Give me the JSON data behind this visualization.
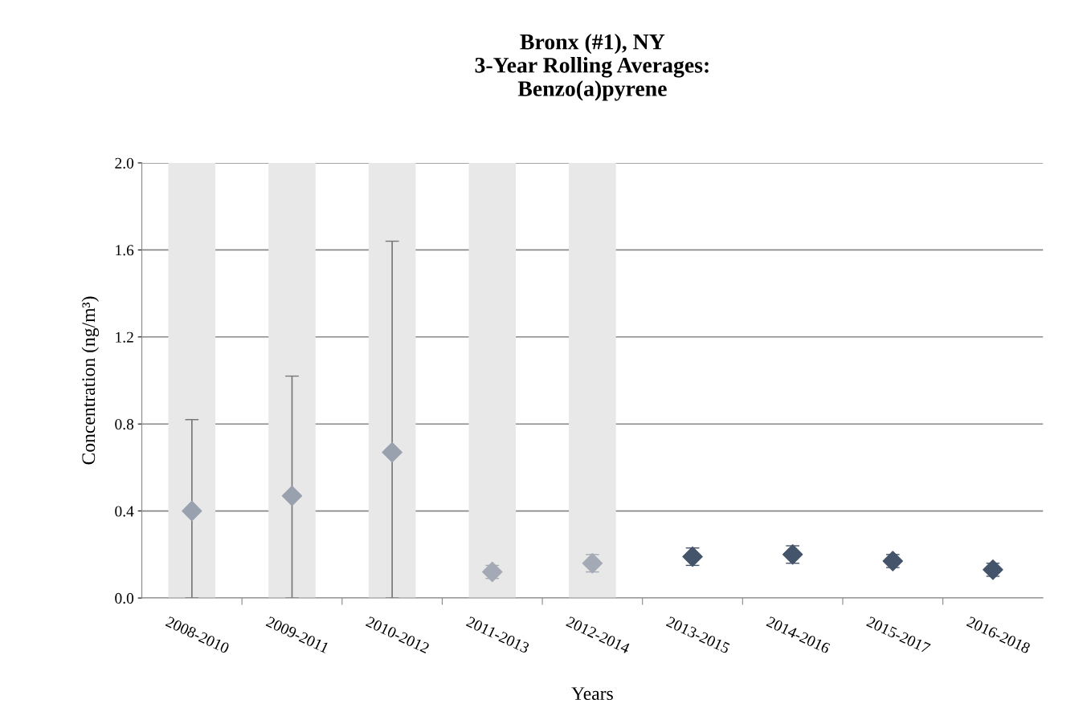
{
  "chart_data": {
    "type": "scatter",
    "title": "Bronx (#1), NY\n3-Year Rolling Averages:\nBenzo(a)pyrene",
    "xlabel": "Years",
    "ylabel": "Concentration (ng/m³)",
    "categories": [
      "2008-2010",
      "2009-2011",
      "2010-2012",
      "2011-2013",
      "2012-2014",
      "2013-2015",
      "2014-2016",
      "2015-2017",
      "2016-2018"
    ],
    "series": [
      {
        "type": "bar",
        "color": "#e8e8e8",
        "values": [
          2.0,
          2.0,
          2.0,
          2.0,
          2.0,
          null,
          null,
          null,
          null
        ]
      },
      {
        "colors": [
          "#9aa1ae",
          "#9aa1ae",
          "#9aa1ae",
          "#a4aab5",
          "#a4aab5",
          "#44546a",
          "#44546a",
          "#44546a",
          "#44546a"
        ],
        "values": [
          0.4,
          0.47,
          0.67,
          0.12,
          0.16,
          0.19,
          0.2,
          0.17,
          0.13
        ],
        "errors": [
          [
            0,
            0.82
          ],
          [
            0,
            1.02
          ],
          [
            0,
            1.64
          ],
          [
            0.09,
            0.15
          ],
          [
            0.12,
            0.2
          ],
          [
            0.15,
            0.23
          ],
          [
            0.16,
            0.24
          ],
          [
            0.14,
            0.2
          ],
          [
            0.1,
            0.16
          ]
        ]
      }
    ],
    "ylim": [
      0,
      2.0
    ],
    "yticks": [
      {
        "value": 0,
        "label": "0.0"
      },
      {
        "value": 0.4,
        "label": "0.4"
      },
      {
        "value": 0.8,
        "label": "0.8"
      },
      {
        "value": 1.2,
        "label": "1.2"
      },
      {
        "value": 1.6,
        "label": "1.6"
      },
      {
        "value": 2.0,
        "label": "2.0"
      }
    ],
    "grid": "y",
    "marker": "diamond",
    "legend": false
  }
}
